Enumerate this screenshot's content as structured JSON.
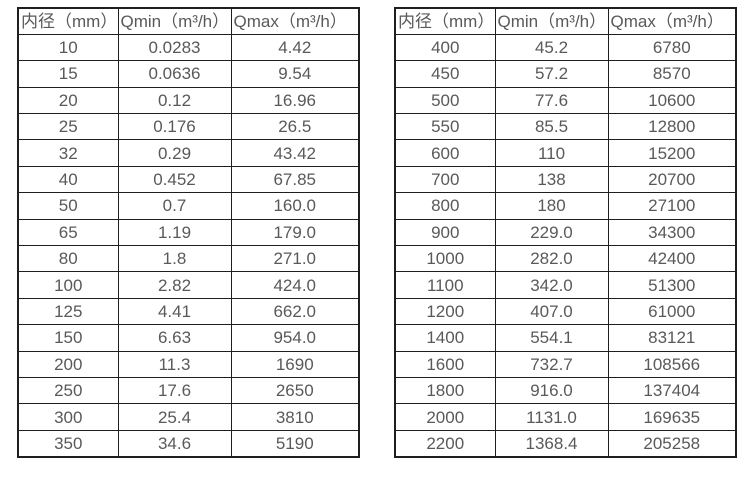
{
  "colors": {
    "text": "#595959",
    "border": "#1f1f1f",
    "background": "#ffffff"
  },
  "tables": [
    {
      "name": "small-diameters",
      "headers": [
        "内径（mm）",
        "Qmin（m³/h）",
        "Qmax（m³/h）"
      ],
      "rows": [
        [
          "10",
          "0.0283",
          "4.42"
        ],
        [
          "15",
          "0.0636",
          "9.54"
        ],
        [
          "20",
          "0.12",
          "16.96"
        ],
        [
          "25",
          "0.176",
          "26.5"
        ],
        [
          "32",
          "0.29",
          "43.42"
        ],
        [
          "40",
          "0.452",
          "67.85"
        ],
        [
          "50",
          "0.7",
          "160.0"
        ],
        [
          "65",
          "1.19",
          "179.0"
        ],
        [
          "80",
          "1.8",
          "271.0"
        ],
        [
          "100",
          "2.82",
          "424.0"
        ],
        [
          "125",
          "4.41",
          "662.0"
        ],
        [
          "150",
          "6.63",
          "954.0"
        ],
        [
          "200",
          "11.3",
          "1690"
        ],
        [
          "250",
          "17.6",
          "2650"
        ],
        [
          "300",
          "25.4",
          "3810"
        ],
        [
          "350",
          "34.6",
          "5190"
        ]
      ]
    },
    {
      "name": "large-diameters",
      "headers": [
        "内径（mm）",
        "Qmin（m³/h）",
        "Qmax（m³/h）"
      ],
      "rows": [
        [
          "400",
          "45.2",
          "6780"
        ],
        [
          "450",
          "57.2",
          "8570"
        ],
        [
          "500",
          "77.6",
          "10600"
        ],
        [
          "550",
          "85.5",
          "12800"
        ],
        [
          "600",
          "110",
          "15200"
        ],
        [
          "700",
          "138",
          "20700"
        ],
        [
          "800",
          "180",
          "27100"
        ],
        [
          "900",
          "229.0",
          "34300"
        ],
        [
          "1000",
          "282.0",
          "42400"
        ],
        [
          "1100",
          "342.0",
          "51300"
        ],
        [
          "1200",
          "407.0",
          "61000"
        ],
        [
          "1400",
          "554.1",
          "83121"
        ],
        [
          "1600",
          "732.7",
          "108566"
        ],
        [
          "1800",
          "916.0",
          "137404"
        ],
        [
          "2000",
          "1131.0",
          "169635"
        ],
        [
          "2200",
          "1368.4",
          "205258"
        ]
      ]
    }
  ]
}
